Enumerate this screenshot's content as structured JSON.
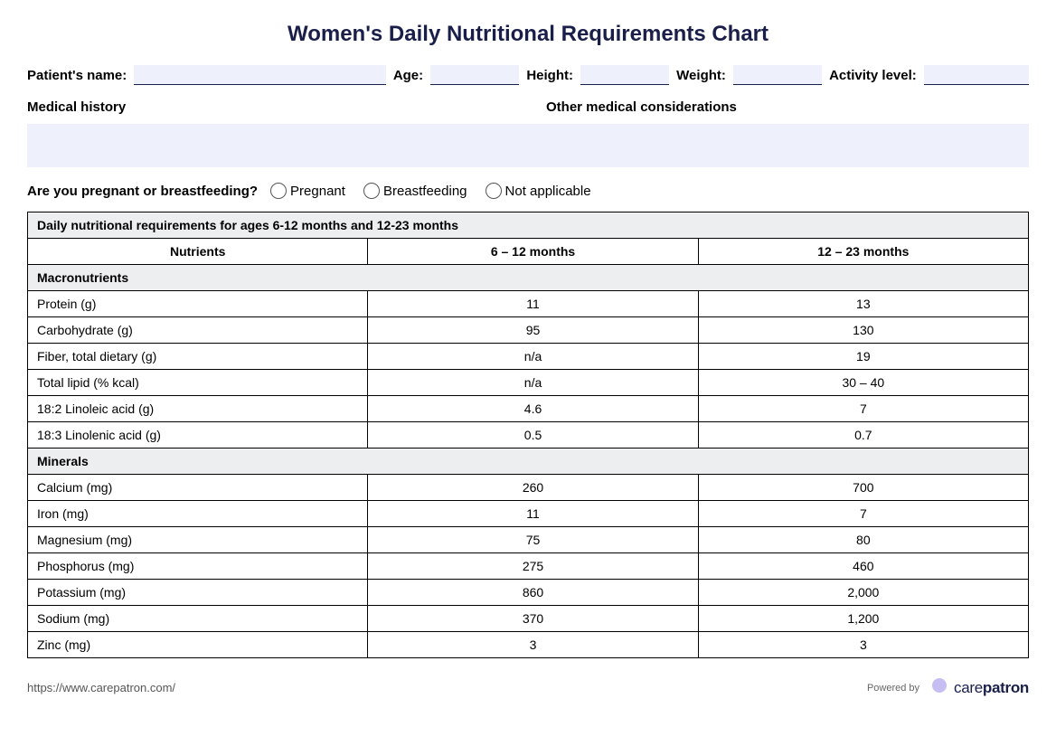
{
  "title": "Women's Daily Nutritional Requirements Chart",
  "colors": {
    "title": "#1a1f4a",
    "input_bg": "#eef0fb",
    "underline": "#1a1f4a",
    "table_border": "#000000",
    "section_bg": "#eceef0",
    "page_bg": "#ffffff",
    "footer_text": "#555555",
    "logo_purple": "#7b61ff",
    "logo_lilac": "#c6bdf2"
  },
  "patient_fields": {
    "name_label": "Patient's name:",
    "age_label": "Age:",
    "height_label": "Height:",
    "weight_label": "Weight:",
    "activity_label": "Activity level:"
  },
  "sections": {
    "med_history": "Medical history",
    "other_consid": "Other medical considerations"
  },
  "question": {
    "label": "Are you pregnant or breastfeeding?",
    "options": [
      "Pregnant",
      "Breastfeeding",
      "Not applicable"
    ]
  },
  "table": {
    "caption": "Daily nutritional requirements for ages 6-12 months and 12-23 months",
    "columns": [
      "Nutrients",
      "6 – 12 months",
      "12 – 23 months"
    ],
    "groups": [
      {
        "name": "Macronutrients",
        "rows": [
          {
            "n": "Protein (g)",
            "a": "11",
            "b": "13"
          },
          {
            "n": "Carbohydrate (g)",
            "a": "95",
            "b": "130"
          },
          {
            "n": "Fiber, total dietary (g)",
            "a": "n/a",
            "b": "19"
          },
          {
            "n": "Total lipid (% kcal)",
            "a": "n/a",
            "b": "30 – 40"
          },
          {
            "n": "18:2 Linoleic acid (g)",
            "a": "4.6",
            "b": "7"
          },
          {
            "n": "18:3 Linolenic acid (g)",
            "a": "0.5",
            "b": "0.7"
          }
        ]
      },
      {
        "name": "Minerals",
        "rows": [
          {
            "n": "Calcium (mg)",
            "a": "260",
            "b": "700"
          },
          {
            "n": "Iron (mg)",
            "a": "11",
            "b": "7"
          },
          {
            "n": "Magnesium (mg)",
            "a": "75",
            "b": "80"
          },
          {
            "n": "Phosphorus (mg)",
            "a": "275",
            "b": "460"
          },
          {
            "n": "Potassium (mg)",
            "a": "860",
            "b": "2,000"
          },
          {
            "n": "Sodium (mg)",
            "a": "370",
            "b": "1,200"
          },
          {
            "n": "Zinc (mg)",
            "a": "3",
            "b": "3"
          }
        ]
      }
    ]
  },
  "footer": {
    "url": "https://www.carepatron.com/",
    "powered_by": "Powered by",
    "brand_prefix": "care",
    "brand_suffix": "patron"
  }
}
